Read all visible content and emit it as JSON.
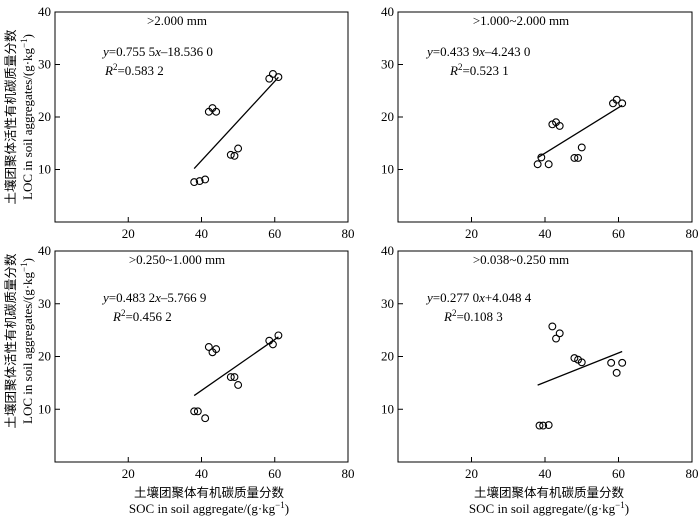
{
  "chart_data": [
    {
      "type": "scatter",
      "title": ">2.000 mm",
      "equation": {
        "y": "y",
        "rest": "=0.755 5",
        "x": "x",
        "tail": "–18.536 0"
      },
      "r2": {
        "label": "R",
        "sup": "2",
        "value": "=0.583 2"
      },
      "xlim": [
        0,
        80
      ],
      "ylim": [
        0,
        40
      ],
      "xticks": [
        20,
        40,
        60,
        80
      ],
      "yticks": [
        10,
        20,
        30,
        40
      ],
      "points": [
        [
          38,
          7.6
        ],
        [
          39.5,
          7.8
        ],
        [
          41,
          8.1
        ],
        [
          42,
          21
        ],
        [
          43,
          21.7
        ],
        [
          44,
          21
        ],
        [
          48,
          12.8
        ],
        [
          49,
          12.6
        ],
        [
          50,
          14
        ],
        [
          58.5,
          27.3
        ],
        [
          59.5,
          28.2
        ],
        [
          61,
          27.6
        ]
      ],
      "fit": {
        "slope": 0.7555,
        "intercept": -18.536,
        "x": [
          38,
          61
        ]
      }
    },
    {
      "type": "scatter",
      "title": ">1.000~2.000 mm",
      "equation": {
        "y": "y",
        "rest": "=0.433 9",
        "x": "x",
        "tail": "–4.243 0"
      },
      "r2": {
        "label": "R",
        "sup": "2",
        "value": "=0.523 1"
      },
      "xlim": [
        0,
        80
      ],
      "ylim": [
        0,
        40
      ],
      "xticks": [
        20,
        40,
        60,
        80
      ],
      "yticks": [
        10,
        20,
        30,
        40
      ],
      "points": [
        [
          38,
          11
        ],
        [
          39,
          12.3
        ],
        [
          41,
          11
        ],
        [
          42,
          18.6
        ],
        [
          43,
          19
        ],
        [
          44,
          18.3
        ],
        [
          48,
          12.2
        ],
        [
          49,
          12.2
        ],
        [
          50,
          14.2
        ],
        [
          58.5,
          22.6
        ],
        [
          59.5,
          23.3
        ],
        [
          61,
          22.6
        ]
      ],
      "fit": {
        "slope": 0.4339,
        "intercept": -4.243,
        "x": [
          38,
          61
        ]
      }
    },
    {
      "type": "scatter",
      "title": ">0.250~1.000 mm",
      "equation": {
        "y": "y",
        "rest": "=0.483 2",
        "x": "x",
        "tail": "–5.766 9"
      },
      "r2": {
        "label": "R",
        "sup": "2",
        "value": "=0.456 2"
      },
      "xlim": [
        0,
        80
      ],
      "ylim": [
        0,
        40
      ],
      "xticks": [
        20,
        40,
        60,
        80
      ],
      "yticks": [
        10,
        20,
        30,
        40
      ],
      "points": [
        [
          38,
          9.6
        ],
        [
          39,
          9.6
        ],
        [
          41,
          8.3
        ],
        [
          42,
          21.8
        ],
        [
          43,
          20.8
        ],
        [
          44,
          21.4
        ],
        [
          48,
          16.1
        ],
        [
          49,
          16.1
        ],
        [
          50,
          14.6
        ],
        [
          58.5,
          23
        ],
        [
          59.5,
          22.3
        ],
        [
          61,
          24
        ]
      ],
      "fit": {
        "slope": 0.4832,
        "intercept": -5.7669,
        "x": [
          38,
          61
        ]
      }
    },
    {
      "type": "scatter",
      "title": ">0.038~0.250 mm",
      "equation": {
        "y": "y",
        "rest": "=0.277 0",
        "x": "x",
        "tail": "+4.048 4"
      },
      "r2": {
        "label": "R",
        "sup": "2",
        "value": "=0.108 3"
      },
      "xlim": [
        0,
        80
      ],
      "ylim": [
        0,
        40
      ],
      "xticks": [
        20,
        40,
        60,
        80
      ],
      "yticks": [
        10,
        20,
        30,
        40
      ],
      "points": [
        [
          38.5,
          6.9
        ],
        [
          39.5,
          6.9
        ],
        [
          41,
          7
        ],
        [
          42,
          25.7
        ],
        [
          43,
          23.4
        ],
        [
          44,
          24.4
        ],
        [
          48,
          19.7
        ],
        [
          49,
          19.4
        ],
        [
          50,
          18.9
        ],
        [
          58,
          18.8
        ],
        [
          59.5,
          16.9
        ],
        [
          61,
          18.8
        ]
      ],
      "fit": {
        "slope": 0.277,
        "intercept": 4.0484,
        "x": [
          38,
          61
        ]
      }
    }
  ],
  "axes": {
    "ylabel_zh": "土壤团聚体活性有机碳质量分数",
    "ylabel_en": "LOC in soil aggregates/(g·kg",
    "ylabel_sup": "−1",
    "ylabel_close": ")",
    "xlabel_zh": "土壤团聚体有机碳质量分数",
    "xlabel_en": "SOC in soil aggregate/(g·kg",
    "xlabel_sup": "−1",
    "xlabel_close": ")"
  }
}
